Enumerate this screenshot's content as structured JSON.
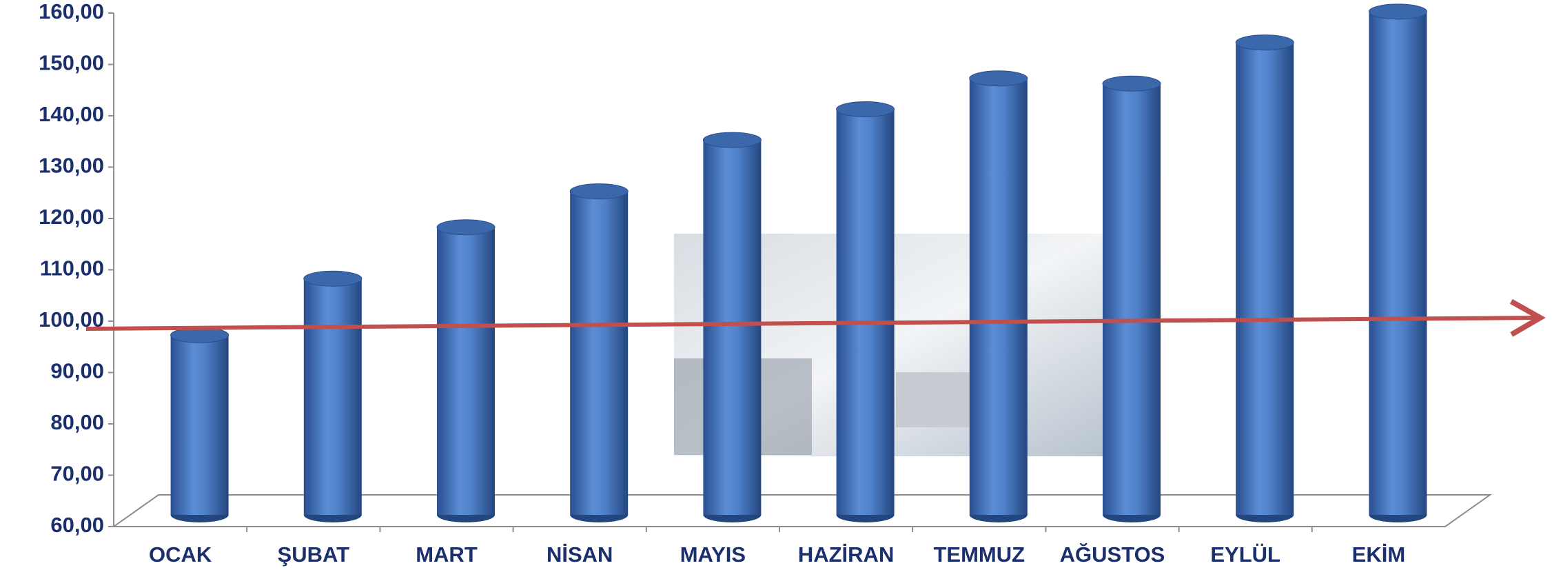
{
  "chart_data": {
    "type": "bar",
    "categories": [
      "OCAK",
      "ŞUBAT",
      "MART",
      "NİSAN",
      "MAYIS",
      "HAZİRAN",
      "TEMMUZ",
      "AĞUSTOS",
      "EYLÜL",
      "EKİM"
    ],
    "values": [
      95,
      106,
      116,
      123,
      133,
      139,
      145,
      144,
      152,
      158
    ],
    "color": "#4a7cc4",
    "ylim": [
      60,
      160
    ],
    "yticks": [
      {
        "value": 60,
        "label": "60,00"
      },
      {
        "value": 70,
        "label": "70,00"
      },
      {
        "value": 80,
        "label": "80,00"
      },
      {
        "value": 90,
        "label": "90,00"
      },
      {
        "value": 100,
        "label": "100,00"
      },
      {
        "value": 110,
        "label": "110,00"
      },
      {
        "value": 120,
        "label": "120,00"
      },
      {
        "value": 130,
        "label": "130,00"
      },
      {
        "value": 140,
        "label": "140,00"
      },
      {
        "value": 150,
        "label": "150,00"
      },
      {
        "value": 160,
        "label": "160,00"
      }
    ],
    "grid": false
  }
}
